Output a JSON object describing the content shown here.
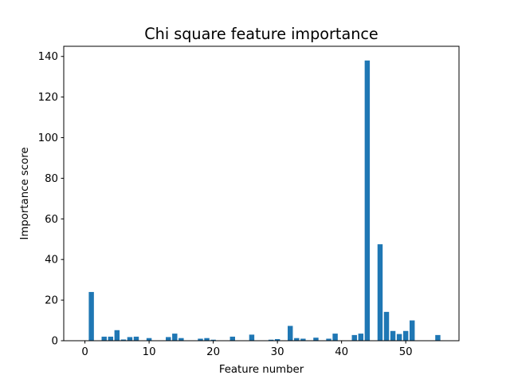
{
  "chart_data": {
    "type": "bar",
    "title": "Chi square feature importance",
    "xlabel": "Feature number",
    "ylabel": "Importance score",
    "xlim": [
      -3.3,
      58.3
    ],
    "ylim": [
      0,
      145
    ],
    "xticks": [
      0,
      10,
      20,
      30,
      40,
      50
    ],
    "yticks": [
      0,
      20,
      40,
      60,
      80,
      100,
      120,
      140
    ],
    "grid": false,
    "bar_color": "#1f77b4",
    "x": [
      0,
      1,
      2,
      3,
      4,
      5,
      6,
      7,
      8,
      9,
      10,
      11,
      12,
      13,
      14,
      15,
      16,
      17,
      18,
      19,
      20,
      21,
      22,
      23,
      24,
      25,
      26,
      27,
      28,
      29,
      30,
      31,
      32,
      33,
      34,
      35,
      36,
      37,
      38,
      39,
      40,
      41,
      42,
      43,
      44,
      45,
      46,
      47,
      48,
      49,
      50,
      51,
      52,
      53,
      54,
      55
    ],
    "values": [
      0,
      24,
      0,
      2,
      2,
      5.2,
      0.6,
      1.8,
      2,
      0,
      1.3,
      0,
      0,
      1.8,
      3.5,
      1.3,
      0,
      0,
      1,
      1.3,
      0.5,
      0,
      0,
      2,
      0,
      0,
      3,
      0,
      0,
      0.5,
      0.8,
      0,
      7.3,
      1.3,
      1,
      0,
      1.5,
      0,
      1,
      3.5,
      0,
      0,
      2.8,
      3.5,
      138,
      0,
      47.5,
      14.2,
      4.8,
      3.3,
      4.8,
      10,
      0,
      0,
      0,
      2.8
    ]
  }
}
